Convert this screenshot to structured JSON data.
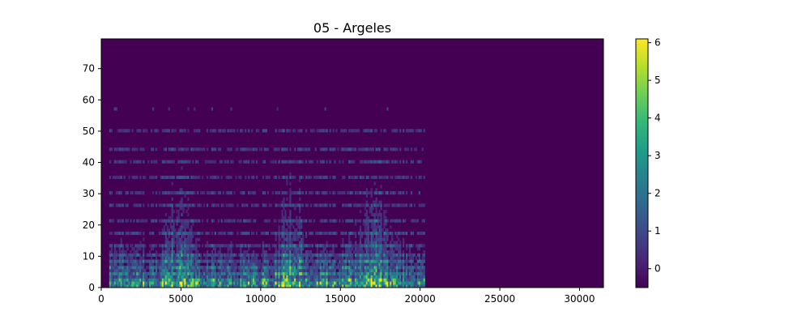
{
  "chart_data": {
    "type": "heatmap",
    "title": "05 - Argeles",
    "xlabel": "",
    "ylabel": "",
    "xlim": [
      0,
      31500
    ],
    "ylim": [
      0,
      79.5
    ],
    "xticks": [
      0,
      5000,
      10000,
      15000,
      20000,
      25000,
      30000
    ],
    "xtick_labels": [
      "0",
      "5000",
      "10000",
      "15000",
      "20000",
      "25000",
      "30000"
    ],
    "yticks": [
      0,
      10,
      20,
      30,
      40,
      50,
      60,
      70
    ],
    "ytick_labels": [
      "0",
      "10",
      "20",
      "30",
      "40",
      "50",
      "60",
      "70"
    ],
    "colormap": "viridis",
    "colorbar": {
      "vmin": -0.5,
      "vmax": 6.1,
      "ticks": [
        0,
        1,
        2,
        3,
        4,
        5,
        6
      ],
      "tick_labels": [
        "0",
        "1",
        "2",
        "3",
        "4",
        "5",
        "6"
      ]
    },
    "grid": false,
    "legend": "none",
    "active_x_range": [
      450,
      20200
    ],
    "background_value": -0.5,
    "rows": 80,
    "time_bins": 315
  },
  "colors": {
    "viridis_stops": [
      "#440154",
      "#482878",
      "#3e4989",
      "#31688e",
      "#26828e",
      "#1f9e89",
      "#35b779",
      "#6ece58",
      "#b5de2b",
      "#fde725"
    ]
  }
}
